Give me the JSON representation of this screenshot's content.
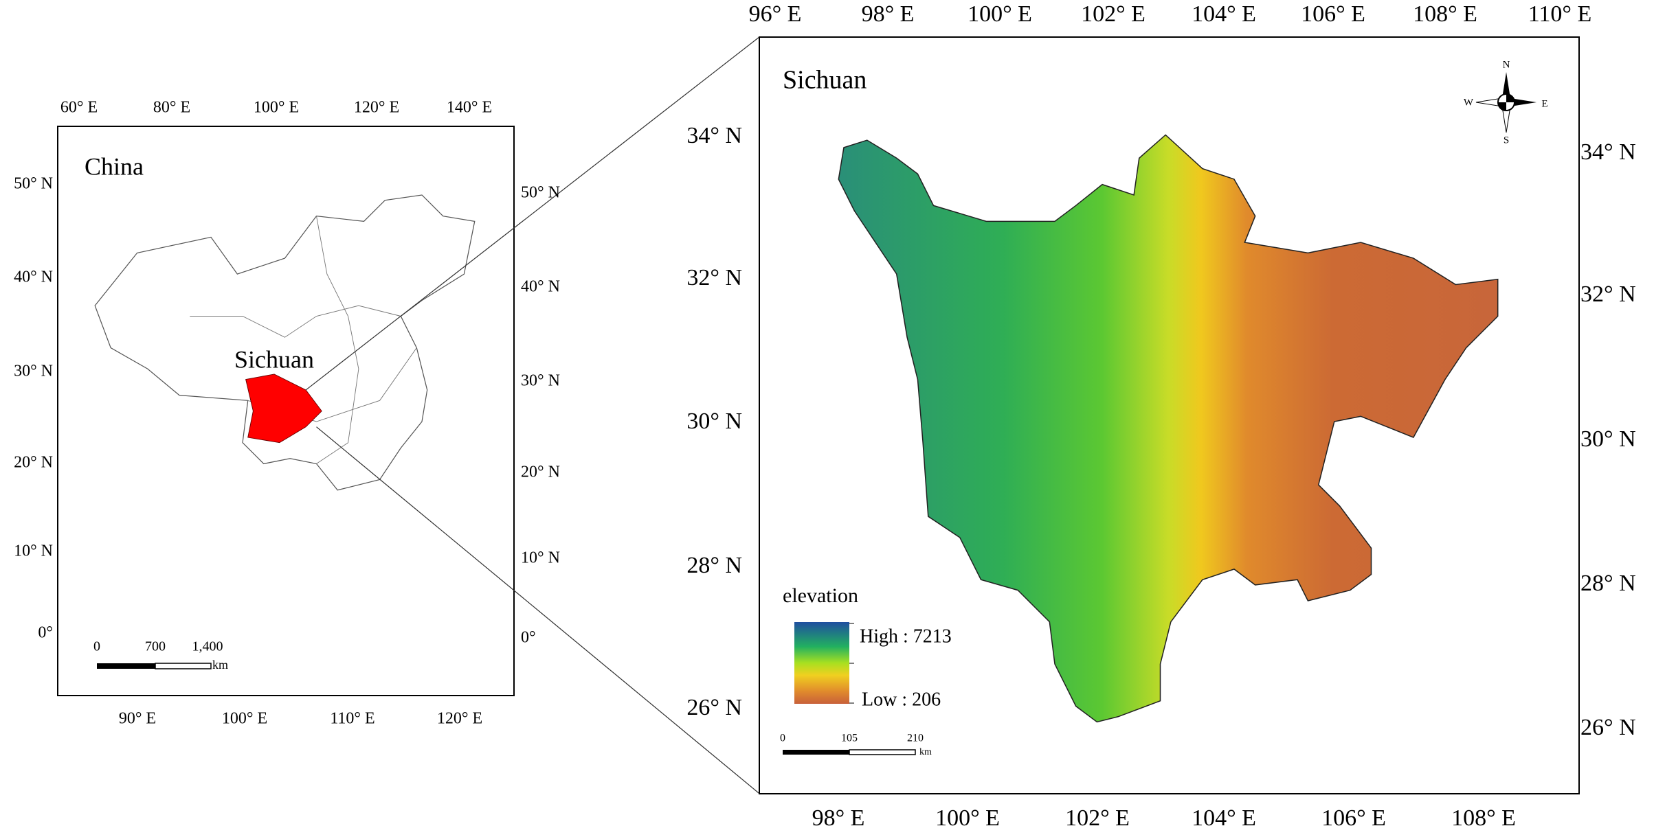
{
  "overview_map": {
    "title": "China",
    "region_label": "Sichuan",
    "top_ticks": [
      "60° E",
      "80° E",
      "100° E",
      "120° E",
      "140° E"
    ],
    "bottom_ticks": [
      "90° E",
      "100° E",
      "110° E",
      "120° E"
    ],
    "left_ticks": [
      "50° N",
      "40° N",
      "30° N",
      "20° N",
      "10° N",
      "0°"
    ],
    "right_ticks": [
      "50° N",
      "40° N",
      "30° N",
      "20° N",
      "10° N",
      "0°"
    ],
    "scale_bar": {
      "labels": [
        "0",
        "700",
        "1,400"
      ],
      "unit": "km"
    }
  },
  "detail_map": {
    "title": "Sichuan",
    "top_ticks": [
      "96° E",
      "98° E",
      "100° E",
      "102° E",
      "104° E",
      "106° E",
      "108° E",
      "110° E"
    ],
    "bottom_ticks": [
      "98° E",
      "100° E",
      "102° E",
      "104° E",
      "106° E",
      "108° E"
    ],
    "left_ticks": [
      "34° N",
      "32° N",
      "30° N",
      "28° N",
      "26° N"
    ],
    "right_ticks": [
      "34° N",
      "32° N",
      "30° N",
      "28° N",
      "26° N"
    ],
    "compass": {
      "north": "N",
      "south": "S",
      "east": "E",
      "west": "W"
    },
    "legend": {
      "title": "elevation",
      "high": "High : 7213",
      "low": "Low : 206"
    },
    "scale_bar": {
      "labels": [
        "0",
        "105",
        "210"
      ],
      "unit": "km"
    }
  }
}
